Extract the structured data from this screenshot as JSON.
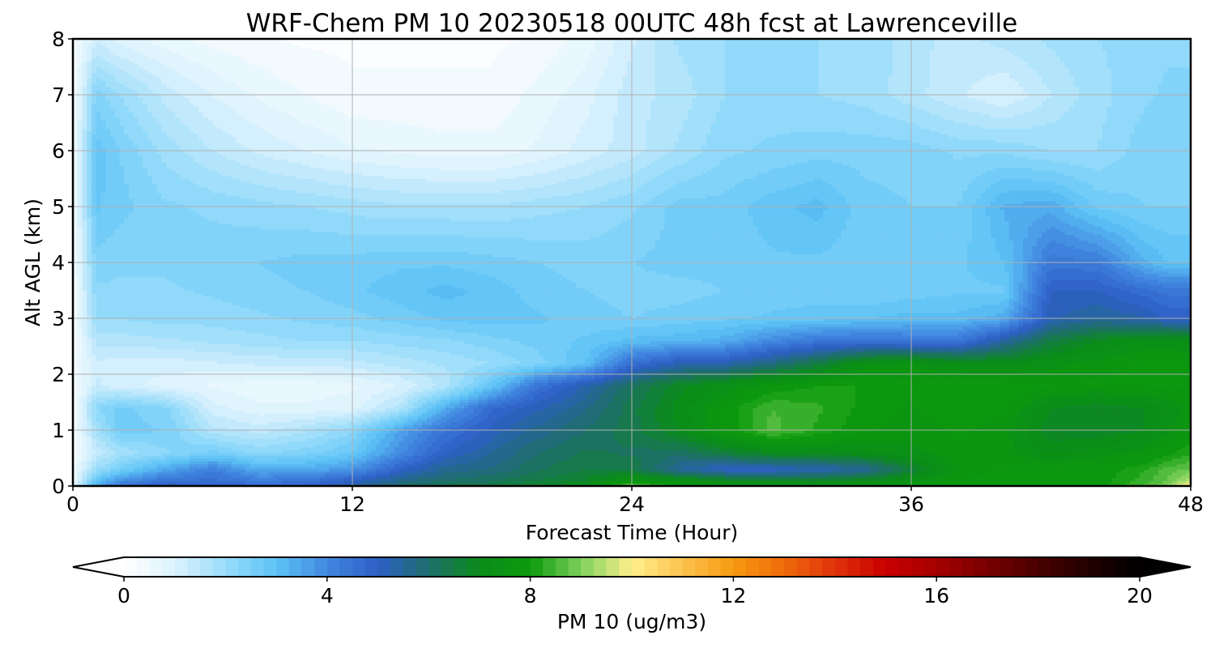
{
  "chart_data": {
    "type": "heatmap",
    "title": "WRF-Chem PM 10  20230518 00UTC 48h fcst at Lawrenceville",
    "xlabel": "Forecast Time (Hour)",
    "ylabel": "Alt AGL (km)",
    "xlim": [
      0,
      48
    ],
    "ylim": [
      0,
      8
    ],
    "xticks": [
      0,
      12,
      24,
      36,
      48
    ],
    "yticks": [
      0,
      1,
      2,
      3,
      4,
      5,
      6,
      7,
      8
    ],
    "grid": true,
    "colorbar": {
      "label": "PM 10  (ug/m3)",
      "range": [
        0,
        20
      ],
      "ticks": [
        0,
        4,
        8,
        12,
        16,
        20
      ],
      "extend": "both",
      "stops": [
        {
          "v": 0,
          "c": "#ffffff"
        },
        {
          "v": 1,
          "c": "#dcf2fd"
        },
        {
          "v": 2,
          "c": "#99dcfa"
        },
        {
          "v": 3,
          "c": "#5cc3f6"
        },
        {
          "v": 4,
          "c": "#4287e0"
        },
        {
          "v": 5,
          "c": "#2d5fc6"
        },
        {
          "v": 6,
          "c": "#1e6e6c"
        },
        {
          "v": 7,
          "c": "#0a8c1a"
        },
        {
          "v": 8,
          "c": "#0c9a0c"
        },
        {
          "v": 9,
          "c": "#7ed15c"
        },
        {
          "v": 10,
          "c": "#fff08c"
        },
        {
          "v": 11,
          "c": "#fbc24e"
        },
        {
          "v": 12,
          "c": "#f79a10"
        },
        {
          "v": 13,
          "c": "#ef6a0a"
        },
        {
          "v": 14,
          "c": "#e0320a"
        },
        {
          "v": 15,
          "c": "#c80000"
        },
        {
          "v": 16,
          "c": "#a50000"
        },
        {
          "v": 17,
          "c": "#780000"
        },
        {
          "v": 18,
          "c": "#4a0000"
        },
        {
          "v": 19,
          "c": "#220000"
        },
        {
          "v": 20,
          "c": "#000000"
        }
      ]
    },
    "x": [
      0,
      1,
      2,
      4,
      6,
      8,
      10,
      12,
      14,
      16,
      18,
      20,
      22,
      24,
      26,
      28,
      30,
      32,
      34,
      36,
      38,
      40,
      42,
      44,
      46,
      47,
      48
    ],
    "y": [
      0,
      0.1,
      0.3,
      0.6,
      1.0,
      1.4,
      1.8,
      2.2,
      2.6,
      3.0,
      3.5,
      4.0,
      5.0,
      6.0,
      7.0,
      8.0
    ],
    "z": [
      [
        0.5,
        3.5,
        4.5,
        5.2,
        5.0,
        4.8,
        4.8,
        5.3,
        6.0,
        6.3,
        6.5,
        6.8,
        7.2,
        9.0,
        7.8,
        7.6,
        7.6,
        7.6,
        7.7,
        7.9,
        7.9,
        7.8,
        7.8,
        7.9,
        8.5,
        9.0,
        10.5
      ],
      [
        0.5,
        3.0,
        3.8,
        4.5,
        4.6,
        4.3,
        4.5,
        5.0,
        5.7,
        6.0,
        6.2,
        6.5,
        6.8,
        7.5,
        7.4,
        7.0,
        6.8,
        6.8,
        7.0,
        7.4,
        7.8,
        7.8,
        7.8,
        7.8,
        8.4,
        8.8,
        9.5
      ],
      [
        0.4,
        2.0,
        2.6,
        3.5,
        4.2,
        3.4,
        3.4,
        3.8,
        4.9,
        5.6,
        5.8,
        6.2,
        6.5,
        6.5,
        5.5,
        5.0,
        5.0,
        5.2,
        5.5,
        6.6,
        7.6,
        7.8,
        7.8,
        7.8,
        8.2,
        8.6,
        8.8
      ],
      [
        0.3,
        1.3,
        1.8,
        2.2,
        2.6,
        2.2,
        2.4,
        2.8,
        3.9,
        5.0,
        5.5,
        6.0,
        6.3,
        6.2,
        6.1,
        6.6,
        7.0,
        7.0,
        7.2,
        7.4,
        7.7,
        7.6,
        7.2,
        7.4,
        7.6,
        7.9,
        8.2
      ],
      [
        0.3,
        1.8,
        2.6,
        2.5,
        1.6,
        1.4,
        1.7,
        2.2,
        3.5,
        4.5,
        5.1,
        5.6,
        6.0,
        6.4,
        7.0,
        7.8,
        8.6,
        8.2,
        7.8,
        7.6,
        7.8,
        7.6,
        6.8,
        6.8,
        7.0,
        7.4,
        7.8
      ],
      [
        0.3,
        2.2,
        2.6,
        2.3,
        1.1,
        0.8,
        0.8,
        0.9,
        1.6,
        3.4,
        4.7,
        5.2,
        5.7,
        6.4,
        7.1,
        7.8,
        8.5,
        8.3,
        7.9,
        7.7,
        7.9,
        7.8,
        7.0,
        6.8,
        7.0,
        7.3,
        7.6
      ],
      [
        0.3,
        1.3,
        1.1,
        0.9,
        0.7,
        0.6,
        0.6,
        0.7,
        1.0,
        1.6,
        2.9,
        4.5,
        5.3,
        6.2,
        6.9,
        7.3,
        7.8,
        8.0,
        8.0,
        7.8,
        7.9,
        7.9,
        7.8,
        7.8,
        7.8,
        7.8,
        7.8
      ],
      [
        0.3,
        1.2,
        1.1,
        1.1,
        1.2,
        1.3,
        1.3,
        1.4,
        1.6,
        1.8,
        2.0,
        2.4,
        3.0,
        4.6,
        5.2,
        5.3,
        5.8,
        6.5,
        7.4,
        7.5,
        7.2,
        7.1,
        7.4,
        7.6,
        7.8,
        7.8,
        7.8
      ],
      [
        0.3,
        1.6,
        1.6,
        1.7,
        1.8,
        1.9,
        2.0,
        2.0,
        2.1,
        2.2,
        2.4,
        2.6,
        2.8,
        3.1,
        3.2,
        3.4,
        4.0,
        4.4,
        4.5,
        4.4,
        4.4,
        5.5,
        6.5,
        7.0,
        7.3,
        7.3,
        7.2
      ],
      [
        0.3,
        2.0,
        2.0,
        2.1,
        2.1,
        2.2,
        2.3,
        2.4,
        2.6,
        2.8,
        2.9,
        2.8,
        2.6,
        2.5,
        2.6,
        2.7,
        2.8,
        2.9,
        3.0,
        3.1,
        3.1,
        3.4,
        5.2,
        5.5,
        5.3,
        5.0,
        5.0
      ],
      [
        0.3,
        2.2,
        2.2,
        2.2,
        2.3,
        2.4,
        2.5,
        2.7,
        2.9,
        3.1,
        2.9,
        2.6,
        2.5,
        2.4,
        2.4,
        2.5,
        2.6,
        2.6,
        2.5,
        2.6,
        2.7,
        2.7,
        5.0,
        5.0,
        4.6,
        4.4,
        4.4
      ],
      [
        0.3,
        2.4,
        2.3,
        2.3,
        2.4,
        2.5,
        2.6,
        2.6,
        2.7,
        2.7,
        2.6,
        2.5,
        2.4,
        2.5,
        2.6,
        2.6,
        2.7,
        2.7,
        2.6,
        2.5,
        2.7,
        3.0,
        4.4,
        4.3,
        3.3,
        3.0,
        3.0
      ],
      [
        0.3,
        2.8,
        2.6,
        2.3,
        2.2,
        2.1,
        2.0,
        1.9,
        1.8,
        1.8,
        1.8,
        1.9,
        2.0,
        2.2,
        2.6,
        2.6,
        2.9,
        3.1,
        2.6,
        2.5,
        2.5,
        3.3,
        3.4,
        2.7,
        2.5,
        2.5,
        2.5
      ],
      [
        0.3,
        2.9,
        2.5,
        1.9,
        1.5,
        1.2,
        1.0,
        0.8,
        0.7,
        0.6,
        0.6,
        0.8,
        1.1,
        1.4,
        1.8,
        2.2,
        2.3,
        2.4,
        2.4,
        2.4,
        2.2,
        2.2,
        2.0,
        2.0,
        2.4,
        2.4,
        2.4
      ],
      [
        0.3,
        2.4,
        2.0,
        1.4,
        1.0,
        0.7,
        0.5,
        0.3,
        0.3,
        0.3,
        0.3,
        0.6,
        0.9,
        1.4,
        1.6,
        2.0,
        2.1,
        2.0,
        1.9,
        1.6,
        1.3,
        1.0,
        1.5,
        1.9,
        2.2,
        2.3,
        2.3
      ],
      [
        0.3,
        1.2,
        0.9,
        0.6,
        0.4,
        0.3,
        0.2,
        0.2,
        0.2,
        0.2,
        0.2,
        0.3,
        0.6,
        1.2,
        1.8,
        2.0,
        2.0,
        2.0,
        2.0,
        1.6,
        1.4,
        1.6,
        1.8,
        2.0,
        2.1,
        2.2,
        2.2
      ]
    ]
  }
}
